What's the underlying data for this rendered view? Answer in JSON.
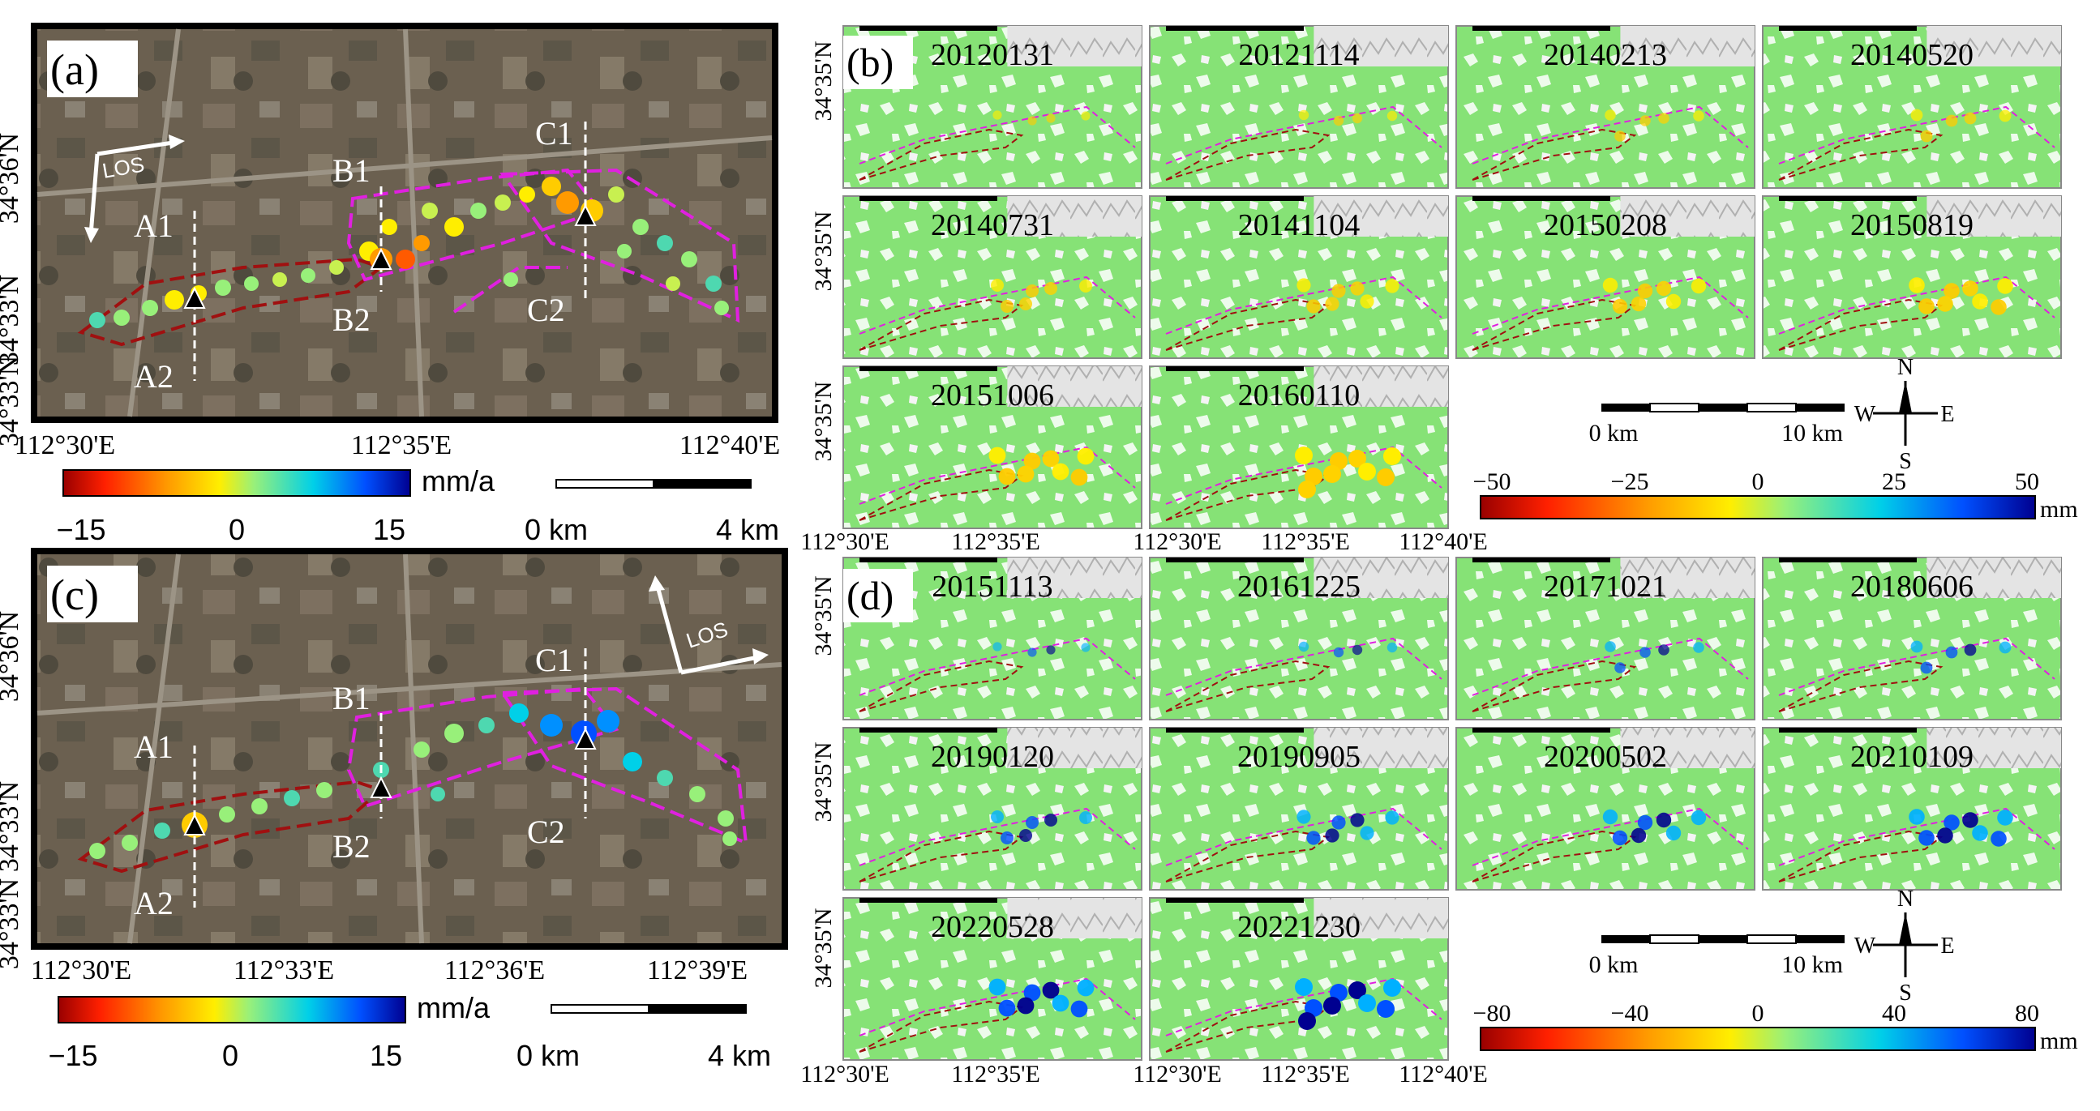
{
  "panels": {
    "a": {
      "label": "(a)",
      "lat_labels": [
        "34°36'N",
        "34°33'N",
        "34°33'N"
      ],
      "lon_labels": [
        "112°30'E",
        "112°35'E",
        "112°40'E"
      ],
      "los": "LOS",
      "profiles": [
        "A1",
        "A2",
        "B1",
        "B2",
        "C1",
        "C2"
      ],
      "colorbar": {
        "unit": "mm/a",
        "ticks": [
          "−15",
          "0",
          "15"
        ],
        "range": [
          -15,
          15
        ]
      },
      "scale": {
        "start": "0 km",
        "end": "4 km"
      }
    },
    "b": {
      "label": "(b)",
      "dates": [
        "20120131",
        "20121114",
        "20140213",
        "20140520",
        "20140731",
        "20141104",
        "20150208",
        "20150819",
        "20151006",
        "20160110"
      ],
      "lat_label": "34°35'N",
      "lon_labels": [
        "112°30'E",
        "112°35'E",
        "112°30'E",
        "112°35'E",
        "112°40'E"
      ],
      "scale": {
        "start": "0 km",
        "end": "10 km"
      },
      "compass": {
        "n": "N",
        "s": "S",
        "e": "E",
        "w": "W"
      },
      "colorbar": {
        "unit": "mm",
        "ticks": [
          "−50",
          "−25",
          "0",
          "25",
          "50"
        ],
        "range": [
          -50,
          50
        ]
      }
    },
    "c": {
      "label": "(c)",
      "lat_labels": [
        "34°36'N",
        "34°33'N",
        "34°33'N"
      ],
      "lon_labels": [
        "112°30'E",
        "112°33'E",
        "112°36'E",
        "112°39'E"
      ],
      "los": "LOS",
      "profiles": [
        "A1",
        "A2",
        "B1",
        "B2",
        "C1",
        "C2"
      ],
      "colorbar": {
        "unit": "mm/a",
        "ticks": [
          "−15",
          "0",
          "15"
        ],
        "range": [
          -15,
          15
        ]
      },
      "scale": {
        "start": "0 km",
        "end": "4 km"
      }
    },
    "d": {
      "label": "(d)",
      "dates": [
        "20151113",
        "20161225",
        "20171021",
        "20180606",
        "20190120",
        "20190905",
        "20200502",
        "20210109",
        "20220528",
        "20221230"
      ],
      "lat_label": "34°35'N",
      "lon_labels": [
        "112°30'E",
        "112°35'E",
        "112°30'E",
        "112°35'E",
        "112°40'E"
      ],
      "scale": {
        "start": "0 km",
        "end": "10 km"
      },
      "compass": {
        "n": "N",
        "s": "S",
        "e": "E",
        "w": "W"
      },
      "colorbar": {
        "unit": "mm",
        "ticks": [
          "−80",
          "−40",
          "0",
          "40",
          "80"
        ],
        "range": [
          -80,
          80
        ]
      }
    }
  },
  "colors": {
    "satellite_base": "#6b6050",
    "satellite_alt": "#7d7060",
    "ts_ground": "#86e276",
    "outline_magenta": "#e020e0",
    "outline_darkred": "#a01010",
    "colormap": [
      "#990000",
      "#ff2000",
      "#ff9a00",
      "#ffee00",
      "#98f07a",
      "#00d0e8",
      "#0050ff",
      "#000090"
    ]
  }
}
